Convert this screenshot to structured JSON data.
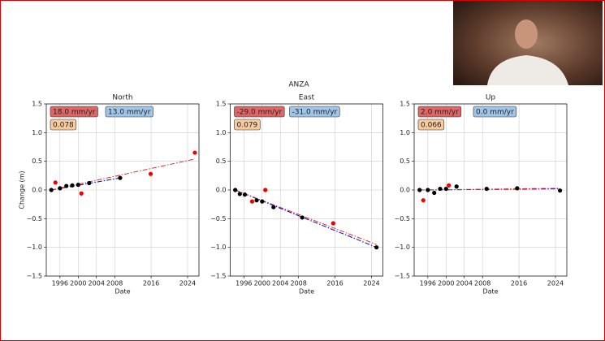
{
  "suptitle": "ANZA",
  "chart_data": [
    {
      "type": "scatter",
      "title": "North",
      "ylabel": "Change (m)",
      "xlabel": "Date",
      "xlim": [
        1993,
        2026.5
      ],
      "xticks": [
        1996,
        2000,
        2004,
        2008,
        2016,
        2024
      ],
      "ylim": [
        -1.5,
        1.5
      ],
      "yticks": [
        {
          "value": -1.5,
          "label": "−1.5"
        },
        {
          "value": -1,
          "label": "−1.0"
        },
        {
          "value": -0.5,
          "label": "−0.5"
        },
        {
          "value": 0,
          "label": "0.0"
        },
        {
          "value": 0.5,
          "label": "0.5"
        },
        {
          "value": 1,
          "label": "1.0"
        },
        {
          "value": 1.5,
          "label": "1.5"
        }
      ],
      "grid": true,
      "annotations": [
        {
          "text": "18.0 mm/yr",
          "color": "#e06666"
        },
        {
          "text": "13.0 mm/yr",
          "color": "#9fc5e8"
        },
        {
          "text": "0.078",
          "color": "#f9cb9c"
        }
      ],
      "series": [
        {
          "type": "line",
          "color": "#0000cc",
          "style": "dashdot",
          "x": [
            1994.1,
            2009.2
          ],
          "values": [
            0,
            0.21
          ]
        },
        {
          "type": "line",
          "color": "#e03030",
          "style": "dashdot",
          "x": [
            1994.1,
            2025.6
          ],
          "values": [
            0,
            0.54
          ]
        },
        {
          "type": "scatter",
          "color": "#000000",
          "x": [
            1994.1,
            1996,
            1997.4,
            1998.7,
            2000,
            2002.4,
            2009.2
          ],
          "values": [
            0,
            0.03,
            0.07,
            0.08,
            0.09,
            0.12,
            0.21
          ]
        },
        {
          "type": "scatter",
          "color": "#ee0000",
          "x": [
            1995,
            2000.7,
            2015.9,
            2025.6
          ],
          "values": [
            0.13,
            -0.06,
            0.28,
            0.65
          ]
        }
      ]
    },
    {
      "type": "scatter",
      "title": "East",
      "xlabel": "Date",
      "xlim": [
        1993,
        2026.5
      ],
      "xticks": [
        1996,
        2000,
        2004,
        2008,
        2016,
        2024
      ],
      "ylim": [
        -1.5,
        1.5
      ],
      "yticks": [
        {
          "value": -1.5,
          "label": "−1.5"
        },
        {
          "value": -1,
          "label": "−1.0"
        },
        {
          "value": -0.5,
          "label": "−0.5"
        },
        {
          "value": 0,
          "label": "0.0"
        },
        {
          "value": 0.5,
          "label": "0.5"
        },
        {
          "value": 1,
          "label": "1.0"
        },
        {
          "value": 1.5,
          "label": "1.5"
        }
      ],
      "grid": true,
      "annotations": [
        {
          "text": "-29.0 mm/yr",
          "color": "#e06666"
        },
        {
          "text": "-31.0 mm/yr",
          "color": "#9fc5e8"
        },
        {
          "text": "0.079",
          "color": "#f9cb9c"
        }
      ],
      "series": [
        {
          "type": "line",
          "color": "#0000cc",
          "style": "dashdot",
          "x": [
            1994.1,
            2025.1
          ],
          "values": [
            0,
            -1
          ]
        },
        {
          "type": "line",
          "color": "#e03030",
          "style": "dashdot",
          "x": [
            1994.1,
            2025.1
          ],
          "values": [
            0,
            -0.95
          ]
        },
        {
          "type": "scatter",
          "color": "#000000",
          "x": [
            1994.1,
            1995.1,
            1996.2,
            1998.8,
            2000,
            2002.5,
            2008.8,
            2025.1
          ],
          "values": [
            0,
            -0.07,
            -0.08,
            -0.18,
            -0.2,
            -0.3,
            -0.48,
            -1
          ]
        },
        {
          "type": "scatter",
          "color": "#ee0000",
          "x": [
            1997.8,
            2000.7,
            2015.6
          ],
          "values": [
            -0.2,
            0,
            -0.58
          ]
        }
      ]
    },
    {
      "type": "scatter",
      "title": "Up",
      "xlabel": "Date",
      "xlim": [
        1993,
        2026.5
      ],
      "xticks": [
        1996,
        2000,
        2004,
        2008,
        2016,
        2024
      ],
      "ylim": [
        -1.5,
        1.5
      ],
      "yticks": [
        {
          "value": -1.5,
          "label": "−1.5"
        },
        {
          "value": -1,
          "label": "−1.0"
        },
        {
          "value": -0.5,
          "label": "−0.5"
        },
        {
          "value": 0,
          "label": "0.0"
        },
        {
          "value": 0.5,
          "label": "0.5"
        },
        {
          "value": 1,
          "label": "1.0"
        },
        {
          "value": 1.5,
          "label": "1.5"
        }
      ],
      "grid": true,
      "annotations": [
        {
          "text": "2.0 mm/yr",
          "color": "#e06666"
        },
        {
          "text": "0.0 mm/yr",
          "color": "#9fc5e8"
        },
        {
          "text": "0.066",
          "color": "#f9cb9c"
        }
      ],
      "series": [
        {
          "type": "line",
          "color": "#0000cc",
          "style": "dashdot",
          "x": [
            1994.2,
            2025
          ],
          "values": [
            0,
            0.02
          ]
        },
        {
          "type": "line",
          "color": "#e03030",
          "style": "dashdot",
          "x": [
            1994.2,
            2025
          ],
          "values": [
            0,
            0.03
          ]
        },
        {
          "type": "scatter",
          "color": "#000000",
          "x": [
            1994.2,
            1996,
            1997.4,
            1998.7,
            2000,
            2002.3,
            2008.9,
            2015.6,
            2025
          ],
          "values": [
            0,
            0,
            -0.05,
            0.02,
            0.02,
            0.06,
            0.02,
            0.03,
            -0.01
          ]
        },
        {
          "type": "scatter",
          "color": "#ee0000",
          "x": [
            1995,
            2000.6
          ],
          "values": [
            -0.18,
            0.08
          ]
        }
      ]
    }
  ]
}
